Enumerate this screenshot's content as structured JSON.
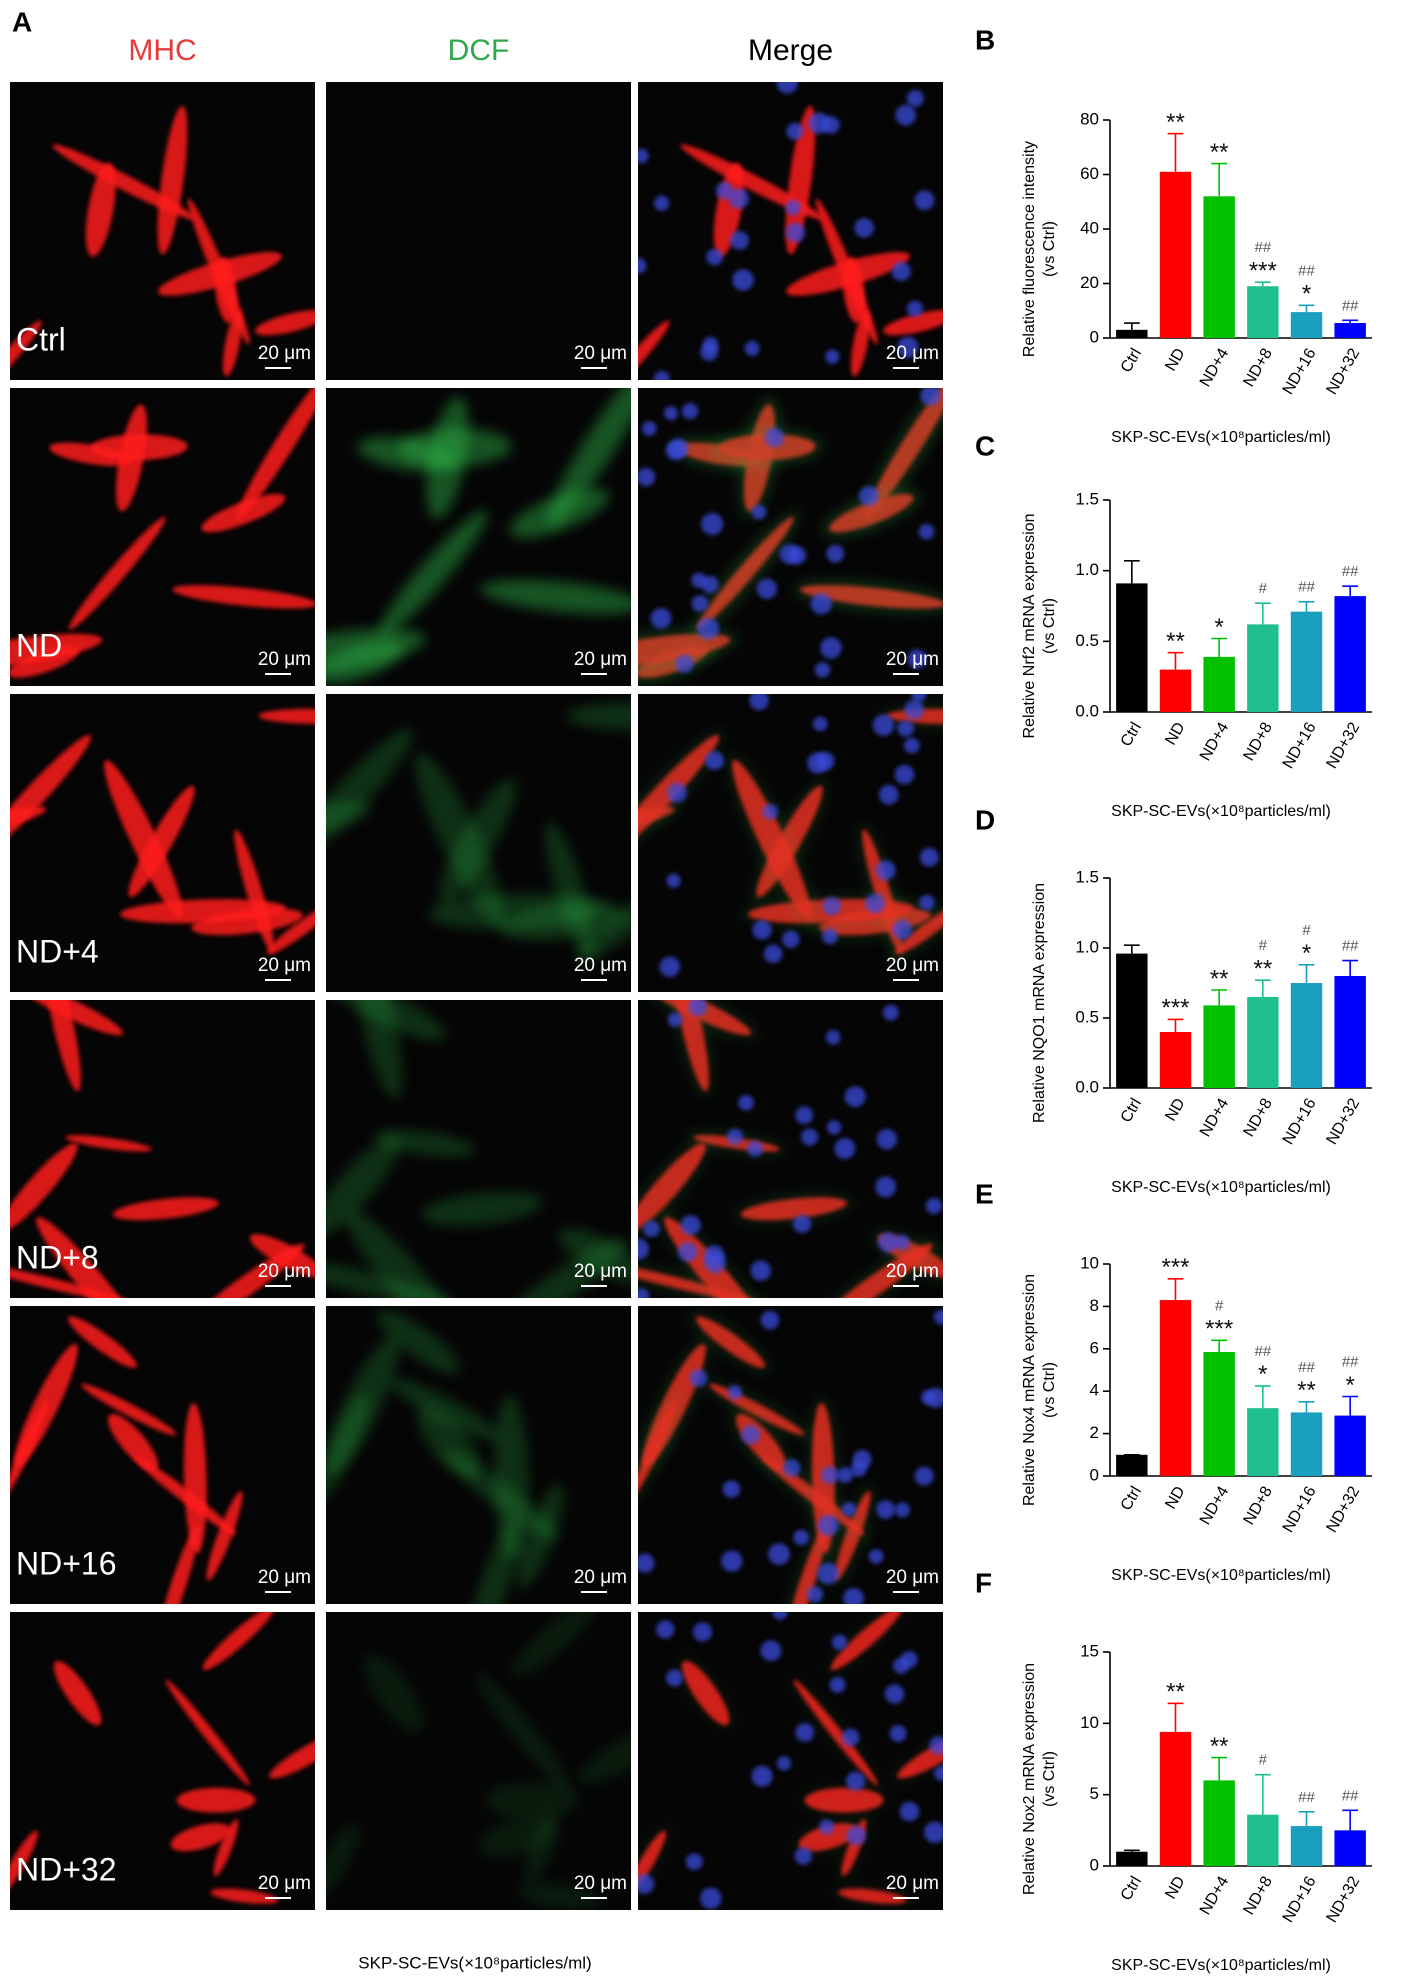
{
  "panel_a": {
    "letter": "A",
    "columns": [
      "MHC",
      "DCF",
      "Merge"
    ],
    "rows": [
      "Ctrl",
      "ND",
      "ND+4",
      "ND+8",
      "ND+16",
      "ND+32"
    ],
    "scale_bar": "20 μm",
    "x_title": "SKP-SC-EVs(×10⁸particles/ml)"
  },
  "chart_data": [
    {
      "type": "bar",
      "letter": "B",
      "ylabel": [
        "Relative fluorescence intensity",
        "(vs Ctrl)"
      ],
      "x_title": "SKP-SC-EVs(×10⁸particles/ml)",
      "categories": [
        "Ctrl",
        "ND",
        "ND+4",
        "ND+8",
        "ND+16",
        "ND+32"
      ],
      "colors": [
        "#000000",
        "#ff0000",
        "#00c000",
        "#1fbf8f",
        "#1a9fbf",
        "#0000ff"
      ],
      "values": [
        3,
        61,
        52,
        19,
        9.5,
        5.5
      ],
      "errors": [
        2.5,
        14,
        12,
        1.5,
        2.5,
        1
      ],
      "sig_labels": [
        [],
        [
          "**"
        ],
        [
          "**"
        ],
        [
          "##",
          "***"
        ],
        [
          "##",
          "*"
        ],
        [
          "##"
        ]
      ],
      "ylim": [
        0,
        80
      ],
      "yticks": [
        0,
        20,
        40,
        60,
        80
      ]
    },
    {
      "type": "bar",
      "letter": "C",
      "ylabel": [
        "Relative Nrf2 mRNA expression",
        "(vs Ctrl)"
      ],
      "x_title": "SKP-SC-EVs(×10⁸particles/ml)",
      "categories": [
        "Ctrl",
        "ND",
        "ND+4",
        "ND+8",
        "ND+16",
        "ND+32"
      ],
      "colors": [
        "#000000",
        "#ff0000",
        "#00c000",
        "#1fbf8f",
        "#1a9fbf",
        "#0000ff"
      ],
      "values": [
        0.91,
        0.3,
        0.39,
        0.62,
        0.71,
        0.82
      ],
      "errors": [
        0.16,
        0.12,
        0.13,
        0.15,
        0.07,
        0.07
      ],
      "sig_labels": [
        [],
        [
          "**"
        ],
        [
          "*"
        ],
        [
          "#"
        ],
        [
          "##"
        ],
        [
          "##"
        ]
      ],
      "ylim": [
        0,
        1.5
      ],
      "yticks": [
        {
          "value": 0,
          "label": "0.0"
        },
        0.5,
        {
          "value": 1,
          "label": "1.0"
        },
        1.5
      ]
    },
    {
      "type": "bar",
      "letter": "D",
      "ylabel": [
        "Relative NQO1 mRNA expression"
      ],
      "x_title": "SKP-SC-EVs(×10⁸particles/ml)",
      "categories": [
        "Ctrl",
        "ND",
        "ND+4",
        "ND+8",
        "ND+16",
        "ND+32"
      ],
      "colors": [
        "#000000",
        "#ff0000",
        "#00c000",
        "#1fbf8f",
        "#1a9fbf",
        "#0000ff"
      ],
      "values": [
        0.96,
        0.4,
        0.59,
        0.65,
        0.75,
        0.8
      ],
      "errors": [
        0.06,
        0.09,
        0.11,
        0.12,
        0.13,
        0.11
      ],
      "sig_labels": [
        [],
        [
          "***"
        ],
        [
          "**"
        ],
        [
          "#",
          "**"
        ],
        [
          "#",
          "*"
        ],
        [
          "##"
        ]
      ],
      "ylim": [
        0,
        1.5
      ],
      "yticks": [
        {
          "value": 0,
          "label": "0.0"
        },
        0.5,
        {
          "value": 1,
          "label": "1.0"
        },
        1.5
      ]
    },
    {
      "type": "bar",
      "letter": "E",
      "ylabel": [
        "Relative Nox4 mRNA expression",
        "(vs Ctrl)"
      ],
      "x_title": "SKP-SC-EVs(×10⁸particles/ml)",
      "categories": [
        "Ctrl",
        "ND",
        "ND+4",
        "ND+8",
        "ND+16",
        "ND+32"
      ],
      "colors": [
        "#000000",
        "#ff0000",
        "#00c000",
        "#1fbf8f",
        "#1a9fbf",
        "#0000ff"
      ],
      "values": [
        1,
        8.3,
        5.85,
        3.2,
        3,
        2.85
      ],
      "errors": [
        0,
        1,
        0.55,
        1.05,
        0.5,
        0.9
      ],
      "sig_labels": [
        [],
        [
          "***"
        ],
        [
          "#",
          "***"
        ],
        [
          "##",
          "*"
        ],
        [
          "##",
          "**"
        ],
        [
          "##",
          "*"
        ]
      ],
      "ylim": [
        0,
        10
      ],
      "yticks": [
        0,
        2,
        4,
        6,
        8,
        10
      ]
    },
    {
      "type": "bar",
      "letter": "F",
      "ylabel": [
        "Relative Nox2 mRNA expression",
        "(vs Ctrl)"
      ],
      "x_title": "SKP-SC-EVs(×10⁸particles/ml)",
      "categories": [
        "Ctrl",
        "ND",
        "ND+4",
        "ND+8",
        "ND+16",
        "ND+32"
      ],
      "colors": [
        "#000000",
        "#ff0000",
        "#00c000",
        "#1fbf8f",
        "#1a9fbf",
        "#0000ff"
      ],
      "values": [
        1,
        9.4,
        6,
        3.6,
        2.8,
        2.5
      ],
      "errors": [
        0.1,
        2,
        1.6,
        2.8,
        1,
        1.4
      ],
      "sig_labels": [
        [],
        [
          "**"
        ],
        [
          "**"
        ],
        [
          "#"
        ],
        [
          "##"
        ],
        [
          "##"
        ]
      ],
      "ylim": [
        0,
        15
      ],
      "yticks": [
        0,
        5,
        10,
        15
      ]
    }
  ]
}
